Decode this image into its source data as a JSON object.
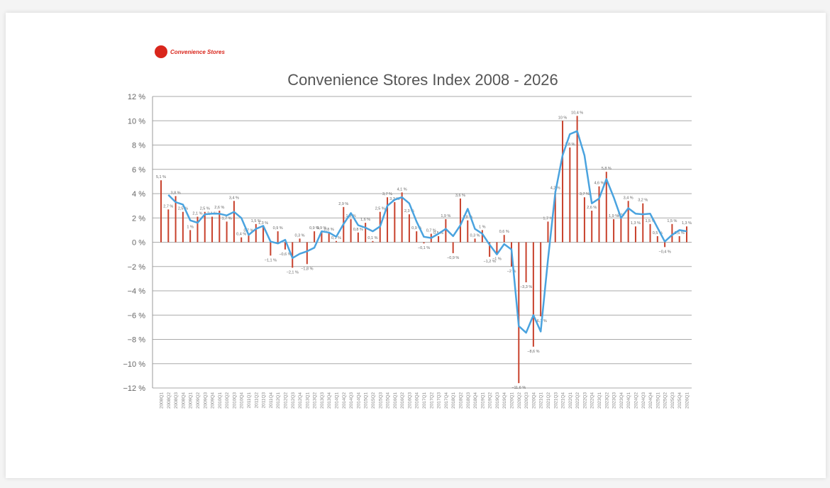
{
  "logo": {
    "text": "Convenience Stores"
  },
  "chart_data": {
    "type": "bar",
    "title": "Convenience Stores Index 2008 - 2026",
    "ylim": [
      -12,
      12
    ],
    "yticks": [
      12,
      10,
      8,
      6,
      4,
      2,
      0,
      -2,
      -4,
      -6,
      -8,
      -10,
      -12
    ],
    "ytick_suffix": " %",
    "grid": true,
    "colors": {
      "bars": "#c8412c",
      "line": "#4aa3df",
      "grid": "#aaaaaa"
    },
    "categories": [
      "2008Q1",
      "2008Q2",
      "2008Q3",
      "2008Q4",
      "2009Q1",
      "2009Q2",
      "2009Q3",
      "2009Q4",
      "2010Q1",
      "2010Q2",
      "2010Q3",
      "2010Q4",
      "2011Q1",
      "2011Q2",
      "2011Q3",
      "2011Q4",
      "2012Q1",
      "2012Q2",
      "2012Q3",
      "2012Q4",
      "2013Q1",
      "2013Q2",
      "2013Q3",
      "2013Q4",
      "2014Q1",
      "2014Q2",
      "2014Q3",
      "2014Q4",
      "2015Q1",
      "2015Q2",
      "2015Q3",
      "2015Q4",
      "2016Q1",
      "2016Q2",
      "2016Q3",
      "2016Q4",
      "2017Q1",
      "2017Q2",
      "2017Q3",
      "2017Q4",
      "2018Q1",
      "2018Q2",
      "2018Q3",
      "2018Q4",
      "2019Q1",
      "2019Q2",
      "2019Q3",
      "2019Q4",
      "2020Q1",
      "2020Q2",
      "2020Q3",
      "2020Q4",
      "2021Q1",
      "2021Q2",
      "2021Q3",
      "2021Q4",
      "2022Q1",
      "2022Q2",
      "2022Q3",
      "2022Q4",
      "2023Q1",
      "2023Q2",
      "2023Q3",
      "2023Q4",
      "2024Q1",
      "2024Q2",
      "2024Q3",
      "2024Q4",
      "2025Q1",
      "2025Q2",
      "2025Q3",
      "2025Q4",
      "2026Q1"
    ],
    "series": [
      {
        "type": "bar",
        "values": [
          5.1,
          2.7,
          3.8,
          2.5,
          1,
          2.1,
          2.5,
          2.1,
          2.6,
          1.7,
          3.4,
          0.4,
          0.7,
          1.5,
          1.3,
          -1.1,
          0.9,
          -0.6,
          -2.1,
          0.3,
          -1.8,
          0.9,
          0.9,
          0.8,
          0.1,
          2.9,
          1.9,
          0.8,
          1.6,
          0.1,
          2.5,
          3.7,
          3.3,
          4.1,
          2.3,
          0.9,
          -0.1,
          0.7,
          0.5,
          1.9,
          -0.9,
          3.6,
          1.8,
          0.3,
          1,
          -1.2,
          -1,
          0.6,
          -2,
          -11.6,
          -3.3,
          -8.6,
          -6.1,
          1.7,
          4.2,
          10,
          7.8,
          10.4,
          3.7,
          2.6,
          4.6,
          5.8,
          1.9,
          2,
          3.4,
          1.3,
          3.2,
          1.5,
          0.5,
          -0.4,
          1.5,
          0.5,
          1.3
        ]
      },
      {
        "type": "line",
        "values": [
          null,
          3.9,
          3.3,
          3.1,
          1.8,
          1.6,
          2.3,
          2.35,
          2.35,
          2.2,
          2.5,
          2.0,
          0.6,
          1.1,
          1.35,
          0.05,
          -0.1,
          0.2,
          -1.3,
          -0.95,
          -0.75,
          -0.45,
          0.9,
          0.8,
          0.45,
          1.5,
          2.4,
          1.4,
          1.2,
          0.9,
          1.3,
          3.0,
          3.5,
          3.7,
          3.2,
          1.7,
          0.45,
          0.35,
          0.7,
          1.1,
          0.5,
          1.4,
          2.75,
          1.1,
          0.7,
          -0.2,
          -1.0,
          -0.15,
          -0.6,
          -6.9,
          -7.45,
          -6.0,
          -7.35,
          -1.4,
          4.1,
          7.15,
          8.9,
          9.15,
          7.15,
          3.2,
          3.6,
          5.2,
          3.7,
          2.0,
          2.8,
          2.35,
          2.3,
          2.35,
          1.2,
          0.05,
          0.6,
          1.0,
          0.9
        ]
      }
    ]
  }
}
